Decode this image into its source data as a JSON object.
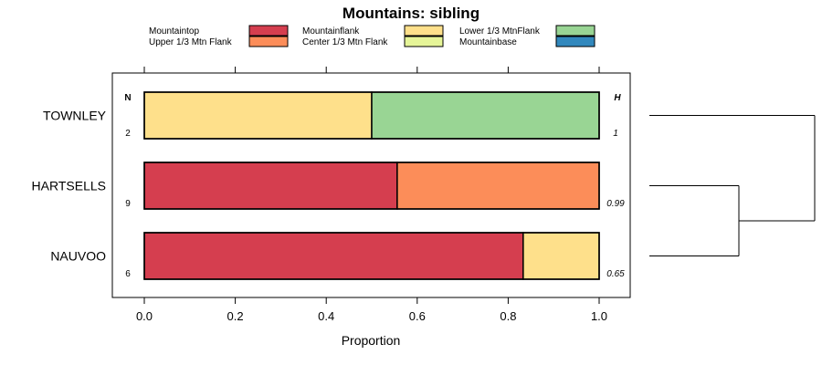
{
  "chart_data": {
    "type": "bar",
    "orientation": "horizontal",
    "stacked": true,
    "title": "Mountains: sibling",
    "xlabel": "Proportion",
    "ylabel": "",
    "xlim": [
      0,
      1
    ],
    "xticks": [
      "0.0",
      "0.2",
      "0.4",
      "0.6",
      "0.8",
      "1.0"
    ],
    "xtick_values": [
      0,
      0.2,
      0.4,
      0.6,
      0.8,
      1.0
    ],
    "categories": [
      "TOWNLEY",
      "HARTSELLS",
      "NAUVOO"
    ],
    "n_header": "N",
    "h_header": "H",
    "n_values": [
      "2",
      "9",
      "6"
    ],
    "h_values": [
      "1",
      "0.99",
      "0.65"
    ],
    "legend_position": "top",
    "series": [
      {
        "name": "Mountaintop",
        "color": "#d53e4f",
        "values": [
          0.0,
          0.556,
          0.833
        ]
      },
      {
        "name": "Upper 1/3 Mtn Flank",
        "color": "#fc8d59",
        "values": [
          0.0,
          0.444,
          0.0
        ]
      },
      {
        "name": "Mountainflank",
        "color": "#fee08b",
        "values": [
          0.5,
          0.0,
          0.167
        ]
      },
      {
        "name": "Center 1/3 Mtn Flank",
        "color": "#e6f598",
        "values": [
          0.0,
          0.0,
          0.0
        ]
      },
      {
        "name": "Lower 1/3 MtnFlank",
        "color": "#99d594",
        "values": [
          0.5,
          0.0,
          0.0
        ]
      },
      {
        "name": "Mountainbase",
        "color": "#3288bd",
        "values": [
          0.0,
          0.0,
          0.0
        ]
      }
    ],
    "dendrogram": true
  }
}
